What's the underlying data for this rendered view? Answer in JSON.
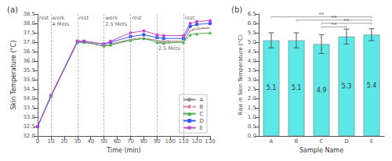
{
  "chart_data": [
    {
      "type": "line",
      "title": "(a)",
      "xlabel": "Time (min)",
      "ylabel": "Skin Temperature (°C)",
      "x": [
        0,
        10,
        30,
        35,
        50,
        55,
        70,
        80,
        90,
        95,
        110,
        115,
        120,
        130
      ],
      "series": [
        {
          "name": "A",
          "color": "#888888",
          "line_style": "solid",
          "marker": "none",
          "values": [
            32.5,
            34.1,
            37.0,
            37.0,
            36.8,
            36.9,
            37.15,
            37.2,
            37.1,
            37.05,
            37.05,
            37.6,
            37.7,
            37.75
          ]
        },
        {
          "name": "B",
          "color": "#dd8888",
          "line_style": "dashed",
          "marker": "none",
          "values": [
            32.5,
            34.1,
            37.0,
            37.0,
            36.8,
            36.9,
            37.15,
            37.25,
            37.1,
            37.05,
            37.05,
            37.65,
            37.75,
            37.8
          ]
        },
        {
          "name": "C",
          "color": "#44aa44",
          "line_style": "solid",
          "marker": "triangle",
          "values": [
            32.5,
            34.1,
            37.0,
            37.0,
            36.8,
            36.85,
            37.1,
            37.2,
            37.0,
            36.95,
            37.0,
            37.4,
            37.45,
            37.5
          ]
        },
        {
          "name": "D",
          "color": "#3355ff",
          "line_style": "solid",
          "marker": "square",
          "values": [
            32.5,
            34.15,
            37.05,
            37.05,
            36.9,
            37.0,
            37.3,
            37.4,
            37.25,
            37.2,
            37.2,
            37.85,
            37.95,
            38.0
          ]
        },
        {
          "name": "E",
          "color": "#cc44cc",
          "line_style": "solid",
          "marker": "circle",
          "values": [
            32.5,
            34.15,
            37.05,
            37.05,
            36.9,
            37.05,
            37.5,
            37.6,
            37.4,
            37.35,
            37.35,
            38.0,
            38.1,
            38.15
          ]
        }
      ],
      "vlines": [
        10,
        30,
        50,
        70,
        90,
        110
      ],
      "annotations": [
        {
          "x": 1,
          "y": 38.45,
          "text": "rest"
        },
        {
          "x": 11,
          "y": 38.45,
          "text": "work\n4 Mets"
        },
        {
          "x": 31,
          "y": 38.45,
          "text": "rest"
        },
        {
          "x": 51,
          "y": 38.45,
          "text": "work\n2.5 Mets"
        },
        {
          "x": 71,
          "y": 38.45,
          "text": "rest"
        },
        {
          "x": 111,
          "y": 38.45,
          "text": "rest"
        },
        {
          "x": 91,
          "y": 37.15,
          "text": "work\n2.5 Mets"
        }
      ],
      "xlim": [
        0,
        130
      ],
      "xticks": [
        0,
        10,
        20,
        30,
        40,
        50,
        60,
        70,
        80,
        90,
        100,
        110,
        120,
        130
      ],
      "ylim": [
        32.0,
        38.5
      ],
      "yticks": [
        {
          "value": 32,
          "label": "32.0"
        },
        32.5,
        {
          "value": 33,
          "label": "33.0"
        },
        33.5,
        {
          "value": 34,
          "label": "34.0"
        },
        34.5,
        {
          "value": 35,
          "label": "35.0"
        },
        35.5,
        {
          "value": 36,
          "label": "36.0"
        },
        36.5,
        {
          "value": 37,
          "label": "37.0"
        },
        37.5,
        {
          "value": 38,
          "label": "38.0"
        },
        38.5
      ],
      "grid": false,
      "legend": "lower right"
    },
    {
      "type": "bar",
      "title": "(b)",
      "xlabel": "Sample Name",
      "ylabel": "Rise in Skin Temperature (°C)",
      "categories": [
        "A",
        "B",
        "C",
        "D",
        "E"
      ],
      "values": [
        5.1,
        5.1,
        4.9,
        5.3,
        5.4
      ],
      "errors": [
        0.4,
        0.4,
        0.5,
        0.4,
        0.32
      ],
      "color": "#5de8e8",
      "data_labels": true,
      "significance_brackets": [
        {
          "from": "A",
          "to": "E",
          "y": 6.35,
          "text": "**"
        },
        {
          "from": "B",
          "to": "E",
          "y": 6.18,
          "text": "**"
        },
        {
          "from": "C",
          "to": "D",
          "y": 5.82,
          "text": "**"
        },
        {
          "from": "C",
          "to": "E",
          "y": 6.01,
          "text": "**"
        }
      ],
      "ylim": [
        0,
        6.5
      ],
      "yticks": [
        {
          "value": 0,
          "label": "0.0"
        },
        0.5,
        {
          "value": 1,
          "label": "1.0"
        },
        1.5,
        {
          "value": 2,
          "label": "2.0"
        },
        2.5,
        {
          "value": 3,
          "label": "3.0"
        },
        3.5,
        {
          "value": 4,
          "label": "4.0"
        },
        4.5,
        {
          "value": 5,
          "label": "5.0"
        },
        5.5,
        {
          "value": 6,
          "label": "6.0"
        },
        6.5
      ],
      "grid": false
    }
  ]
}
